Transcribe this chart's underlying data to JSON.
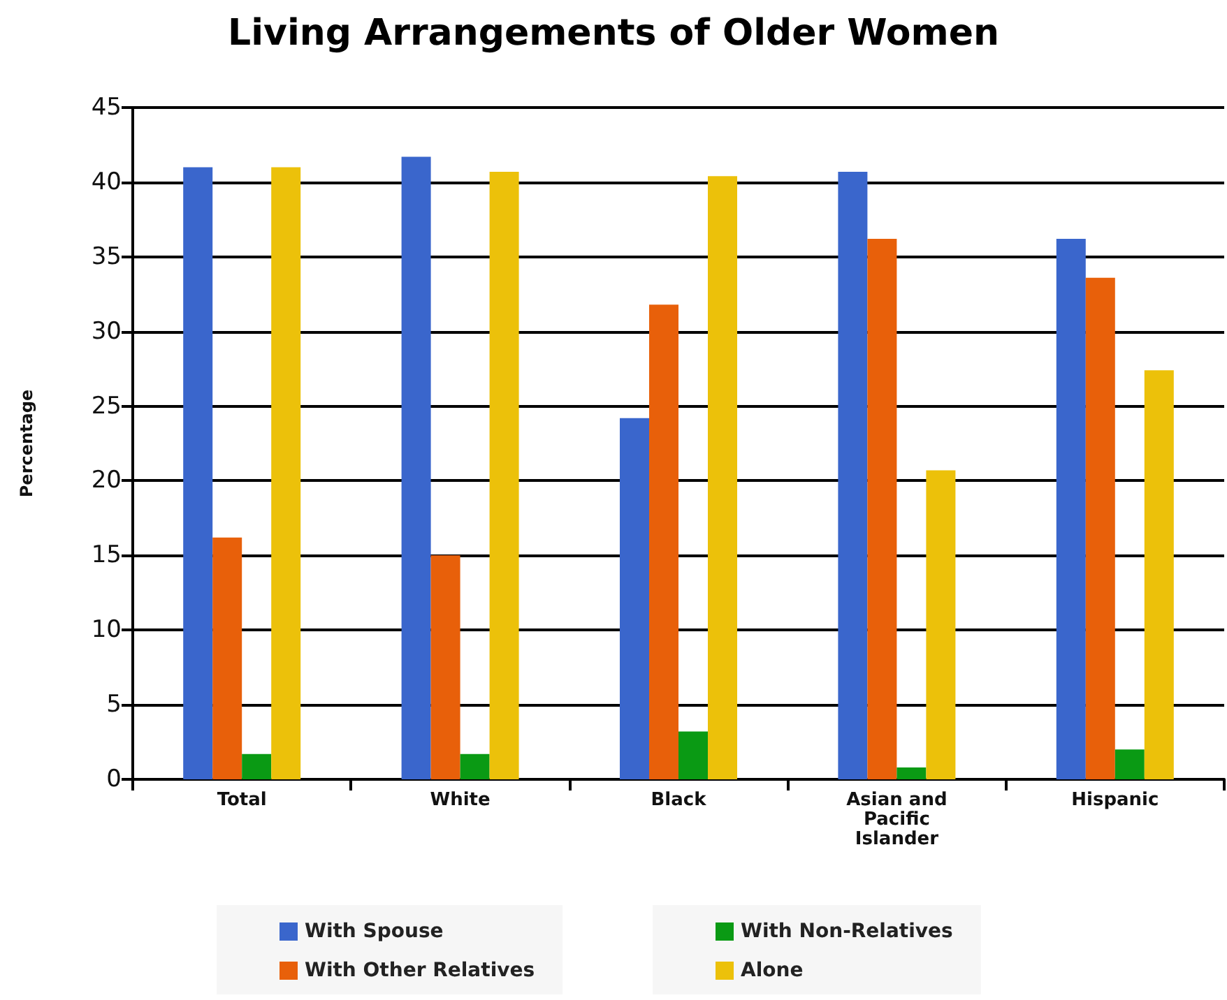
{
  "chart_data": {
    "type": "bar",
    "title": "Living Arrangements of Older Women",
    "ylabel": "Percentage",
    "categories": [
      "Total",
      "White",
      "Black",
      "Asian and Pacific Islander",
      "Hispanic"
    ],
    "series": [
      {
        "name": "With Spouse",
        "color": "#3a66cc",
        "values": [
          41.0,
          41.7,
          24.2,
          40.7,
          36.2
        ]
      },
      {
        "name": "With Other Relatives",
        "color": "#e8600a",
        "values": [
          16.2,
          15.0,
          31.8,
          36.2,
          33.6
        ]
      },
      {
        "name": "With Non-Relatives",
        "color": "#0a9a14",
        "values": [
          1.7,
          1.7,
          3.2,
          0.8,
          2.0
        ]
      },
      {
        "name": "Alone",
        "color": "#ecc10a",
        "values": [
          41.0,
          40.7,
          40.4,
          20.7,
          27.4
        ]
      }
    ],
    "ylim": [
      0,
      45
    ],
    "yticks": [
      0,
      5,
      10,
      15,
      20,
      25,
      30,
      35,
      40,
      45
    ],
    "grid": "y",
    "legend": "bottom"
  }
}
